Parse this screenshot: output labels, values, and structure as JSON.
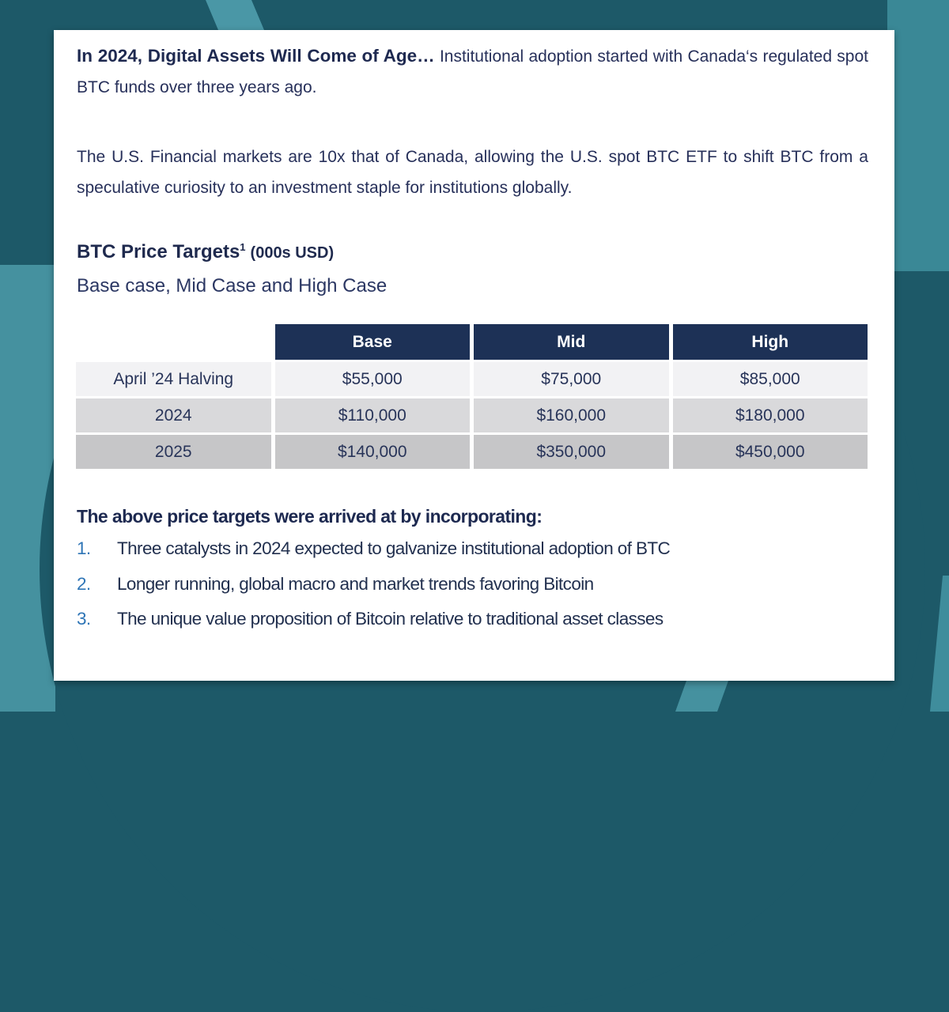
{
  "colors": {
    "background_dark_teal": "#1d5968",
    "background_light_teal": "#45919f",
    "card_white": "#ffffff",
    "table_header_navy": "#1d3156",
    "table_row_light": "#f2f2f4",
    "table_row_mid": "#d9d9db",
    "table_row_dark": "#c6c6c8",
    "text_navy": "#27305a",
    "list_number_blue": "#2e75b6"
  },
  "card": {
    "p1_bold": "In 2024, Digital Assets Will Come of Age…",
    "p1_rest": " Institutional adoption started with Canada‘s regulated spot BTC funds over three years ago.",
    "p2": "The U.S. Financial markets are 10x that of Canada, allowing the U.S. spot BTC ETF to shift BTC from a speculative curiosity to an investment staple for institutions globally.",
    "table_title": {
      "main": "BTC Price Targets",
      "sup": "1",
      "suffix": "(000s USD)"
    },
    "table_subtitle": "Base case, Mid Case and High Case",
    "table": {
      "columns": [
        "Base",
        "Mid",
        "High"
      ],
      "rows": [
        {
          "label": "April ’24 Halving",
          "values": [
            "$55,000",
            "$75,000",
            "$85,000"
          ]
        },
        {
          "label": "2024",
          "values": [
            "$110,000",
            "$160,000",
            "$180,000"
          ]
        },
        {
          "label": "2025",
          "values": [
            "$140,000",
            "$350,000",
            "$450,000"
          ]
        }
      ]
    },
    "list_heading": "The above price targets were arrived at by incorporating:",
    "list_items": [
      {
        "num": "1.",
        "text": "Three catalysts in 2024 expected to galvanize institutional adoption of BTC"
      },
      {
        "num": "2.",
        "text": "Longer running, global macro and market trends favoring Bitcoin"
      },
      {
        "num": "3.",
        "text": "The unique value proposition of Bitcoin relative to traditional asset classes"
      }
    ]
  }
}
